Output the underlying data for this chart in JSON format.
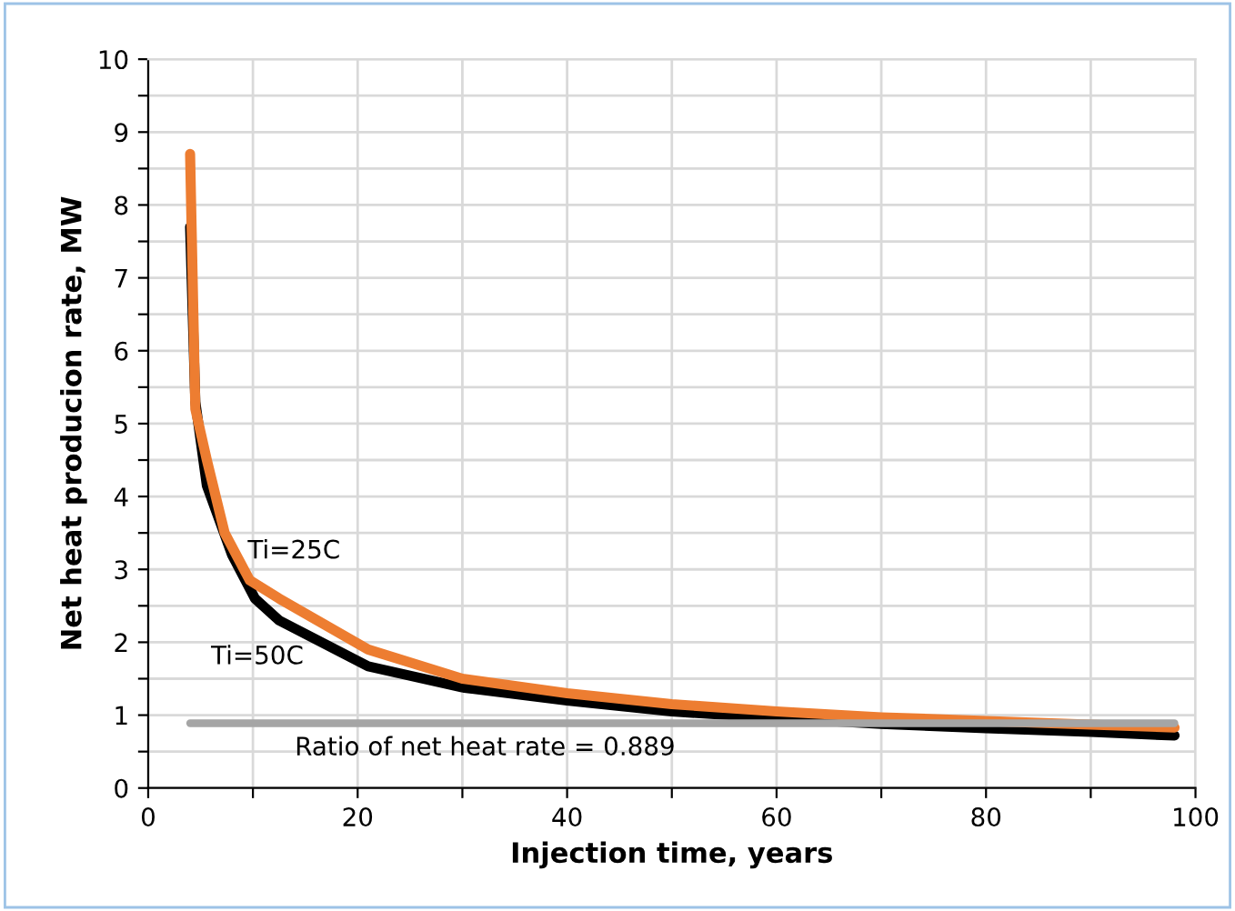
{
  "chart_data": {
    "type": "line",
    "xlabel": "Injection time, years",
    "ylabel": "Net heat producion rate, MW",
    "xlim": [
      0,
      100
    ],
    "ylim": [
      0,
      10
    ],
    "xticks": [
      0,
      {
        "value": 10,
        "label": null
      },
      20,
      {
        "value": 30,
        "label": null
      },
      40,
      {
        "value": 50,
        "label": null
      },
      60,
      {
        "value": 70,
        "label": null
      },
      80,
      {
        "value": 90,
        "label": null
      },
      100
    ],
    "yticks": [
      0,
      {
        "value": 0.5,
        "label": null
      },
      1,
      {
        "value": 1.5,
        "label": null
      },
      2,
      {
        "value": 2.5,
        "label": null
      },
      3,
      {
        "value": 3.5,
        "label": null
      },
      4,
      {
        "value": 4.5,
        "label": null
      },
      5,
      {
        "value": 5.5,
        "label": null
      },
      6,
      {
        "value": 6.5,
        "label": null
      },
      7,
      {
        "value": 7.5,
        "label": null
      },
      8,
      {
        "value": 8.5,
        "label": null
      },
      9,
      {
        "value": 9.5,
        "label": null
      },
      10
    ],
    "grid": true,
    "legend": false,
    "marker": "none",
    "line_style": "solid",
    "series": [
      {
        "name": "Ti=50C",
        "color": "#000000",
        "x": [
          4,
          4.5,
          5.6,
          8,
          10.2,
          12.5,
          21,
          30,
          40,
          50,
          60,
          70,
          80,
          90,
          98
        ],
        "values": [
          7.7,
          5.3,
          4.15,
          3.2,
          2.6,
          2.3,
          1.67,
          1.38,
          1.2,
          1.05,
          0.96,
          0.88,
          0.82,
          0.77,
          0.72
        ]
      },
      {
        "name": "Ti=25C",
        "color": "#ed7d31",
        "x": [
          4,
          4.5,
          5.6,
          7.3,
          9.7,
          12.5,
          21,
          30,
          40,
          50,
          60,
          70,
          80,
          90,
          98
        ],
        "values": [
          8.7,
          5.2,
          4.5,
          3.5,
          2.85,
          2.6,
          1.9,
          1.5,
          1.3,
          1.15,
          1.05,
          0.97,
          0.92,
          0.87,
          0.83
        ]
      },
      {
        "color": "#a5a5a5",
        "x": [
          4,
          98
        ],
        "values": [
          0.889,
          0.889
        ]
      }
    ],
    "annotations": [
      "Ratio of net heat rate = 0.889"
    ]
  }
}
